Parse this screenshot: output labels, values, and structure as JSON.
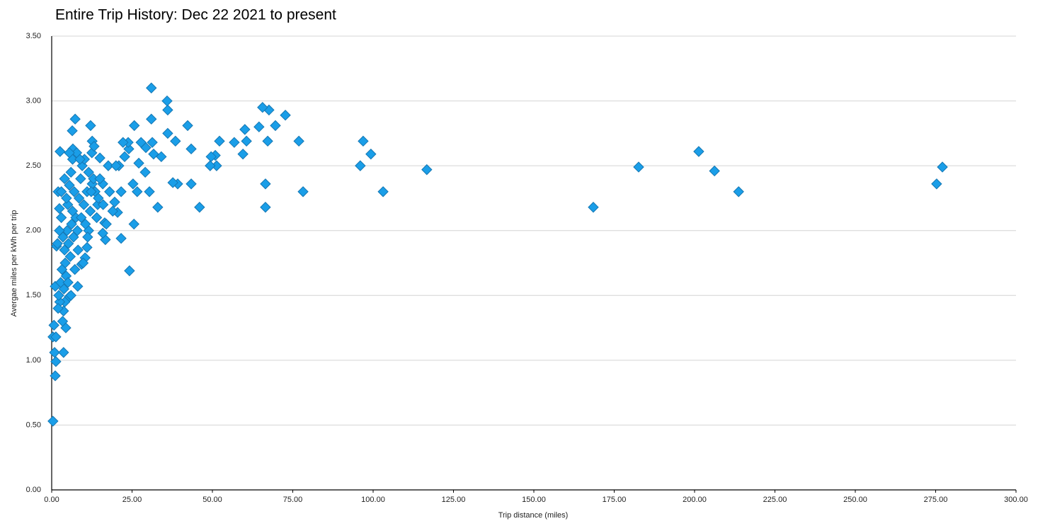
{
  "chart_data": {
    "type": "scatter",
    "title": "Entire Trip History: Dec 22 2021 to present",
    "x_label": "Trip distance (miles)",
    "y_label": "Avergae miles per kWh per trip",
    "color": "#1a9ee8",
    "grid": true,
    "xlim": [
      0,
      300
    ],
    "ylim": [
      0,
      3.5
    ],
    "xticks": [
      {
        "value": 0,
        "label": "0.00"
      },
      {
        "value": 25,
        "label": "25.00"
      },
      {
        "value": 50,
        "label": "50.00"
      },
      {
        "value": 75,
        "label": "75.00"
      },
      {
        "value": 100,
        "label": "100.00"
      },
      {
        "value": 125,
        "label": "125.00"
      },
      {
        "value": 150,
        "label": "150.00"
      },
      {
        "value": 175,
        "label": "175.00"
      },
      {
        "value": 200,
        "label": "200.00"
      },
      {
        "value": 225,
        "label": "225.00"
      },
      {
        "value": 250,
        "label": "250.00"
      },
      {
        "value": 275,
        "label": "275.00"
      },
      {
        "value": 300,
        "label": "300.00"
      }
    ],
    "yticks": [
      {
        "value": 0,
        "label": "0.00"
      },
      {
        "value": 0.5,
        "label": "0.50"
      },
      {
        "value": 1,
        "label": "1.00"
      },
      {
        "value": 1.5,
        "label": "1.50"
      },
      {
        "value": 2,
        "label": "2.00"
      },
      {
        "value": 2.5,
        "label": "2.50"
      },
      {
        "value": 3,
        "label": "3.00"
      },
      {
        "value": 3.5,
        "label": "3.50"
      }
    ],
    "x": [
      277.1,
      275.3,
      213.7,
      206.2,
      201.3,
      182.6,
      168.5,
      116.7,
      103.1,
      99.3,
      96.9,
      96.0,
      78.2,
      76.9,
      72.7,
      69.6,
      67.6,
      65.6,
      67.2,
      64.5,
      66.5,
      66.5,
      60.6,
      60.1,
      59.5,
      56.8,
      52.2,
      51.3,
      50.9,
      49.6,
      49.3,
      46.0,
      43.4,
      43.4,
      42.3,
      39.2,
      37.7,
      38.5,
      36.1,
      36.1,
      35.9,
      34.1,
      33.0,
      31.0,
      31.0,
      31.3,
      31.7,
      30.4,
      29.3,
      29.1,
      27.8,
      26.6,
      27.1,
      25.7,
      25.3,
      25.6,
      24.2,
      24.0,
      23.8,
      22.7,
      22.2,
      21.6,
      21.6,
      20.9,
      20.5,
      19.6,
      17.6,
      16.7,
      16.5,
      15.9,
      15.9,
      15.0,
      14.3,
      12.1,
      12.6,
      12.6,
      11.5,
      11.0,
      10.4,
      9.3,
      8.1,
      7.3,
      6.4,
      6.6,
      2.6,
      2.0,
      2.4,
      1.5,
      1.1,
      0.7,
      0.4,
      1.3,
      0.9,
      1.3,
      1.1,
      0.4,
      3.7,
      4.4,
      3.7,
      5.5,
      3,
      3.5,
      4,
      4.2,
      4.5,
      3.8,
      4.1,
      5,
      5.5,
      6,
      6.5,
      7,
      7.5,
      8,
      8.5,
      9,
      9.5,
      10,
      10.5,
      11,
      11.5,
      12,
      12.5,
      13,
      13.5,
      14,
      14.5,
      15,
      5.2,
      5.8,
      6.2,
      6.8,
      7.2,
      3.2,
      2.8,
      2.5,
      2.2,
      4.8,
      5.1,
      6,
      3,
      4,
      7.8,
      8.2,
      9.2,
      10.2,
      11.2,
      12.3,
      13.2,
      9.8,
      4.6,
      2.4,
      1.8,
      2.0,
      3.4,
      5.5,
      6.5,
      8.8,
      16,
      17,
      18,
      19,
      20
    ],
    "values": [
      2.49,
      2.36,
      2.3,
      2.46,
      2.61,
      2.49,
      2.18,
      2.47,
      2.3,
      2.59,
      2.69,
      2.5,
      2.3,
      2.69,
      2.89,
      2.81,
      2.93,
      2.95,
      2.69,
      2.8,
      2.36,
      2.18,
      2.69,
      2.78,
      2.59,
      2.68,
      2.69,
      2.5,
      2.58,
      2.57,
      2.5,
      2.18,
      2.63,
      2.36,
      2.81,
      2.36,
      2.37,
      2.69,
      2.75,
      2.93,
      3.0,
      2.57,
      2.18,
      3.1,
      2.86,
      2.68,
      2.59,
      2.3,
      2.64,
      2.45,
      2.68,
      2.3,
      2.52,
      2.81,
      2.36,
      2.05,
      1.69,
      2.63,
      2.68,
      2.57,
      2.68,
      1.94,
      2.3,
      2.5,
      2.14,
      2.22,
      2.5,
      1.93,
      2.06,
      2.36,
      1.98,
      2.56,
      2.2,
      2.81,
      2.69,
      2.36,
      2.0,
      1.87,
      1.79,
      1.74,
      1.57,
      2.86,
      2.77,
      2.63,
      2.61,
      2.3,
      2.17,
      1.88,
      1.57,
      1.27,
      1.18,
      1.18,
      1.06,
      0.99,
      0.88,
      0.53,
      1.06,
      1.25,
      1.38,
      1.49,
      2.1,
      1.95,
      1.85,
      1.75,
      1.65,
      1.55,
      1.45,
      2.2,
      2.35,
      2.45,
      2.55,
      2.3,
      2.1,
      2.0,
      2.25,
      2.4,
      2.5,
      2.2,
      2.05,
      2.3,
      2.45,
      2.15,
      2.6,
      2.4,
      2.3,
      2.1,
      2.25,
      2.4,
      1.9,
      1.8,
      2.05,
      1.95,
      1.7,
      1.7,
      1.6,
      1.45,
      1.5,
      2.0,
      1.6,
      1.5,
      2.3,
      2.4,
      2.6,
      1.85,
      2.1,
      2.55,
      1.95,
      2.3,
      2.65,
      1.75,
      2.25,
      2.0,
      1.9,
      1.4,
      1.3,
      2.6,
      2.15,
      2.55,
      2.2,
      2.05,
      2.3,
      2.15,
      2.5
    ]
  }
}
